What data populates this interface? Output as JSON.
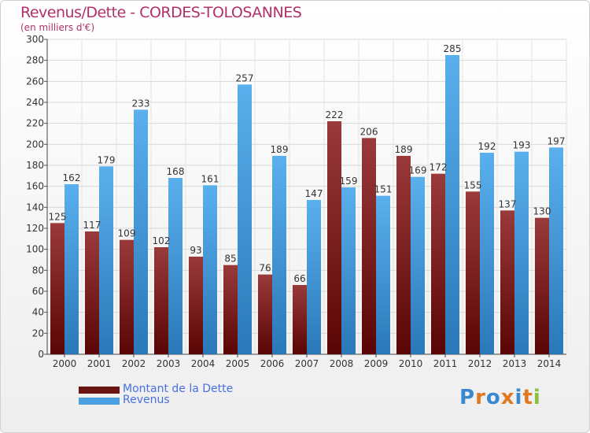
{
  "title": "Revenus/Dette - CORDES-TOLOSANNES",
  "subtitle": "(en milliers d'€)",
  "colors": {
    "dette_dark": "#5a0505",
    "dette_light": "#9a3a3a",
    "revenus_dark": "#2a78b8",
    "revenus_light": "#5ab0ec",
    "title": "#b0306a",
    "legend_text": "#4a6fe0"
  },
  "legend": [
    {
      "label": "Montant de la Dette",
      "color": "#6b1414"
    },
    {
      "label": "Revenus",
      "color": "#4aa0e0"
    }
  ],
  "logo": {
    "text": "Proxiti",
    "letters": [
      "P",
      "r",
      "o",
      "x",
      "i",
      "t",
      "i"
    ],
    "letter_colors": [
      "#3a88d0",
      "#e07820",
      "#3a88d0",
      "#e07820",
      "#3a88d0",
      "#e07820",
      "#8ac040"
    ]
  },
  "chart_data": {
    "type": "bar",
    "categories": [
      "2000",
      "2001",
      "2002",
      "2003",
      "2004",
      "2005",
      "2006",
      "2007",
      "2008",
      "2009",
      "2010",
      "2011",
      "2012",
      "2013",
      "2014"
    ],
    "series": [
      {
        "name": "Montant de la Dette",
        "values": [
          125,
          117,
          109,
          102,
          93,
          85,
          76,
          66,
          222,
          206,
          189,
          172,
          155,
          137,
          130
        ]
      },
      {
        "name": "Revenus",
        "values": [
          162,
          179,
          233,
          168,
          161,
          257,
          189,
          147,
          159,
          151,
          169,
          285,
          192,
          193,
          197
        ]
      }
    ],
    "ylim": [
      0,
      300
    ],
    "yticks": [
      0,
      20,
      40,
      60,
      80,
      100,
      120,
      140,
      160,
      180,
      200,
      220,
      240,
      260,
      280,
      300
    ],
    "grid": true,
    "legend_position": "bottom-left"
  }
}
